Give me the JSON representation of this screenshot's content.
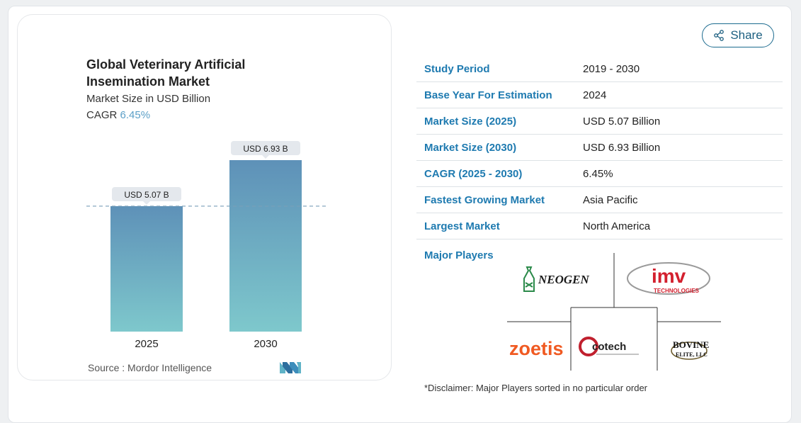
{
  "share_label": "Share",
  "chart_data": {
    "type": "bar",
    "title": "Global Veterinary Artificial Insemination Market",
    "subtitle": "Market Size in USD Billion",
    "cagr_label": "CAGR",
    "cagr_value": "6.45%",
    "categories": [
      "2025",
      "2030"
    ],
    "values": [
      5.07,
      6.93
    ],
    "data_labels": [
      "USD 5.07 B",
      "USD 6.93 B"
    ],
    "ylim": [
      0,
      6.93
    ],
    "reference_line": 5.07,
    "colors": {
      "bar_top": "#5e91b8",
      "bar_bottom": "#7ec8cc",
      "label_bg": "#e4e8ed",
      "ref_line": "#7a9fb8"
    }
  },
  "source": "Source :  Mordor Intelligence",
  "table": [
    {
      "label": "Study Period",
      "value": "2019 - 2030"
    },
    {
      "label": "Base Year For Estimation",
      "value": "2024"
    },
    {
      "label": "Market Size (2025)",
      "value": "USD 5.07 Billion"
    },
    {
      "label": "Market Size (2030)",
      "value": "USD 6.93 Billion"
    },
    {
      "label": "CAGR (2025 - 2030)",
      "value": "6.45%"
    },
    {
      "label": "Fastest Growing Market",
      "value": "Asia Pacific"
    },
    {
      "label": "Largest Market",
      "value": "North America"
    }
  ],
  "major_players_label": "Major Players",
  "players": {
    "neogen": "NEOGEN",
    "imv": "imv",
    "imv_sub": "TECHNOLOGIES",
    "zoetis": "zoetis",
    "cotech": "cotech",
    "bovine": "BOVINE",
    "bovine_sub": "ELITE, LLC"
  },
  "disclaimer": "*Disclaimer: Major Players sorted in no particular order",
  "accent_color": "#1e7ab0"
}
